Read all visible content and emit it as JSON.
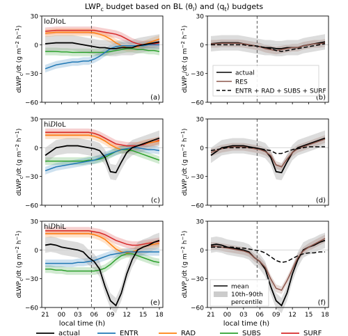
{
  "figure": {
    "title": "LWP c budget based on BL ⟨θl⟩ and ⟨qt⟩ budgets",
    "title_main": "LWP",
    "title_sub": "c",
    "title_rest": " budget based on BL ⟨θ",
    "title_sub2": "l",
    "title_rest2": "⟩ and ⟨q",
    "title_sub3": "t",
    "title_rest3": "⟩ budgets",
    "xlabel": "local time (h)",
    "ylabel": "dLWPc/dt (g m⁻² h⁻¹)",
    "ylabel_main": "dLWP",
    "ylabel_sub": "c",
    "ylabel_rest": "/dt (g m",
    "ylabel_sup1": "−2",
    "ylabel_mid": " h",
    "ylabel_sup2": "−1",
    "ylabel_end": ")"
  },
  "legend_bottom": {
    "items": [
      {
        "label": "actual",
        "color": "#000000"
      },
      {
        "label": "ENTR",
        "color": "#1f77b4"
      },
      {
        "label": "RAD",
        "color": "#ff7f0e"
      },
      {
        "label": "SUBS",
        "color": "#2ca02c"
      },
      {
        "label": "SURF",
        "color": "#d62728"
      }
    ]
  },
  "legend_b": {
    "items": [
      {
        "label": "actual",
        "style": "solid",
        "color": "#000000"
      },
      {
        "label": "RES",
        "style": "solid",
        "color": "#8c564b"
      },
      {
        "label": "ENTR + RAD + SUBS + SURF",
        "style": "dashed",
        "color": "#000000"
      }
    ]
  },
  "legend_f": {
    "mean_label": "mean",
    "band_label_line1": "10th–90th",
    "band_label_line2": "percentile"
  },
  "colors": {
    "actual": "#000000",
    "ENTR": "#1f77b4",
    "RAD": "#ff7f0e",
    "SUBS": "#2ca02c",
    "SURF": "#d62728",
    "RES": "#8c564b",
    "band_actual": "#9a9a9a"
  },
  "chart_data": [
    {
      "panel": "a",
      "row_label": "loDloL",
      "type": "line",
      "x": [
        "21",
        "22",
        "23",
        "00",
        "01",
        "02",
        "03",
        "04",
        "05",
        "06",
        "07",
        "08",
        "09",
        "10",
        "11",
        "12",
        "13",
        "14",
        "15",
        "16",
        "17",
        "18"
      ],
      "xticks": [
        "21",
        "00",
        "03",
        "06",
        "09",
        "12",
        "15",
        "18"
      ],
      "yticks": [
        "-60",
        "-30",
        "0",
        "30"
      ],
      "ylim": [
        -60,
        30
      ],
      "vline_at": "05.5",
      "series": [
        {
          "name": "SURF",
          "values": [
            14,
            14.5,
            15,
            15,
            15,
            15,
            15,
            15,
            15,
            15,
            14,
            13,
            12,
            11,
            9,
            6,
            3,
            1,
            0,
            0.5,
            1,
            2
          ]
        },
        {
          "name": "RAD",
          "values": [
            12,
            12.5,
            13,
            13,
            13,
            13,
            13,
            13,
            13,
            12.5,
            11,
            9,
            6,
            2,
            -1,
            -3,
            -3,
            -2,
            0,
            2,
            4,
            6
          ]
        },
        {
          "name": "SUBS",
          "values": [
            -7,
            -7,
            -7,
            -7.5,
            -7.5,
            -8,
            -8,
            -8,
            -8,
            -8,
            -8,
            -8,
            -7,
            -6,
            -5,
            -4,
            -4,
            -5,
            -5,
            -6,
            -6,
            -7
          ]
        },
        {
          "name": "ENTR",
          "values": [
            -25,
            -23,
            -21,
            -20,
            -19,
            -18,
            -18,
            -17,
            -17,
            -15,
            -12,
            -8,
            -4,
            -2,
            -1,
            -1,
            -1,
            -1,
            -1,
            0,
            0,
            0
          ]
        },
        {
          "name": "actual",
          "values": [
            1,
            1.5,
            2,
            2,
            2,
            2,
            1,
            0,
            -1,
            -2,
            -3,
            -3,
            -4,
            -4,
            -3,
            -3,
            -3,
            -1,
            0,
            1,
            2,
            3
          ]
        }
      ]
    },
    {
      "panel": "b",
      "type": "line",
      "x": [
        "21",
        "22",
        "23",
        "00",
        "01",
        "02",
        "03",
        "04",
        "05",
        "06",
        "07",
        "08",
        "09",
        "10",
        "11",
        "12",
        "13",
        "14",
        "15",
        "16",
        "17",
        "18"
      ],
      "xticks": [
        "21",
        "00",
        "03",
        "06",
        "09",
        "12",
        "15",
        "18"
      ],
      "yticks": [
        "-60",
        "-30",
        "0",
        "30"
      ],
      "ylim": [
        -60,
        30
      ],
      "vline_at": "05.5",
      "series": [
        {
          "name": "actual",
          "values": [
            1,
            1.5,
            2,
            2,
            2,
            2,
            1,
            0,
            -1,
            -2,
            -3,
            -3,
            -4,
            -4,
            -3,
            -3,
            -3,
            -1,
            0,
            1,
            2,
            3
          ]
        },
        {
          "name": "RES",
          "values": [
            1,
            1,
            1.5,
            1.5,
            1.5,
            1.5,
            1,
            0,
            -1,
            -2,
            -4,
            -5,
            -6,
            -5,
            -4,
            -3,
            -3,
            -1,
            0,
            1,
            1,
            2
          ]
        },
        {
          "name": "ENTR + RAD + SUBS + SURF",
          "values": [
            0,
            0,
            0,
            0,
            0,
            0,
            0,
            -1,
            -1,
            -2,
            -3,
            -4,
            -6,
            -7,
            -6,
            -5,
            -4,
            -3,
            -2,
            -1,
            0,
            1
          ]
        }
      ]
    },
    {
      "panel": "c",
      "row_label": "hiDloL",
      "type": "line",
      "x": [
        "21",
        "22",
        "23",
        "00",
        "01",
        "02",
        "03",
        "04",
        "05",
        "06",
        "07",
        "08",
        "09",
        "10",
        "11",
        "12",
        "13",
        "14",
        "15",
        "16",
        "17",
        "18"
      ],
      "xticks": [
        "21",
        "00",
        "03",
        "06",
        "09",
        "12",
        "15",
        "18"
      ],
      "yticks": [
        "-60",
        "-30",
        "0",
        "30"
      ],
      "ylim": [
        -60,
        30
      ],
      "vline_at": "05.5",
      "series": [
        {
          "name": "SURF",
          "values": [
            16,
            16,
            16,
            16,
            16,
            16,
            16,
            16,
            16,
            15,
            13,
            10,
            7,
            4,
            3,
            2,
            2,
            2,
            3,
            5,
            6,
            8
          ]
        },
        {
          "name": "RAD",
          "values": [
            13,
            13,
            13,
            13,
            13,
            13,
            13,
            13,
            13,
            12,
            10,
            7,
            3,
            0,
            -2,
            -2,
            0,
            2,
            4,
            5,
            6,
            7
          ]
        },
        {
          "name": "SUBS",
          "values": [
            -14,
            -14,
            -14,
            -14,
            -14,
            -14,
            -14,
            -14,
            -13,
            -13,
            -12,
            -10,
            -7,
            -4,
            -2,
            -2,
            -3,
            -5,
            -7,
            -9,
            -11,
            -13
          ]
        },
        {
          "name": "ENTR",
          "values": [
            -24,
            -22,
            -20,
            -19,
            -18,
            -17,
            -16,
            -15,
            -14,
            -13,
            -11,
            -8,
            -6,
            -4,
            -2,
            -1,
            0,
            0,
            -1,
            -2,
            -2,
            -3
          ]
        },
        {
          "name": "actual",
          "values": [
            -8,
            -4,
            0,
            1,
            2,
            2,
            2,
            1,
            0,
            -1,
            -3,
            -10,
            -25,
            -26,
            -15,
            -5,
            0,
            2,
            4,
            6,
            8,
            10
          ]
        }
      ]
    },
    {
      "panel": "d",
      "type": "line",
      "x": [
        "21",
        "22",
        "23",
        "00",
        "01",
        "02",
        "03",
        "04",
        "05",
        "06",
        "07",
        "08",
        "09",
        "10",
        "11",
        "12",
        "13",
        "14",
        "15",
        "16",
        "17",
        "18"
      ],
      "xticks": [
        "21",
        "00",
        "03",
        "06",
        "09",
        "12",
        "15",
        "18"
      ],
      "yticks": [
        "-60",
        "-30",
        "0",
        "30"
      ],
      "ylim": [
        -60,
        30
      ],
      "vline_at": "05.5",
      "series": [
        {
          "name": "actual",
          "values": [
            -8,
            -4,
            0,
            1,
            2,
            2,
            2,
            1,
            0,
            -1,
            -3,
            -10,
            -25,
            -26,
            -15,
            -5,
            0,
            2,
            4,
            6,
            8,
            10
          ]
        },
        {
          "name": "RES",
          "values": [
            -5,
            -3,
            -1,
            0,
            1,
            1,
            1,
            0,
            -1,
            -2,
            -4,
            -8,
            -18,
            -20,
            -12,
            -5,
            -1,
            1,
            3,
            5,
            7,
            9
          ]
        },
        {
          "name": "ENTR + RAD + SUBS + SURF",
          "values": [
            -3,
            -2,
            -1,
            0,
            0,
            0,
            0,
            0,
            0,
            -1,
            -2,
            -3,
            -6,
            -6,
            -4,
            -2,
            -1,
            0,
            1,
            1,
            1,
            1
          ]
        }
      ]
    },
    {
      "panel": "e",
      "row_label": "hiDhiL",
      "type": "line",
      "x": [
        "21",
        "22",
        "23",
        "00",
        "01",
        "02",
        "03",
        "04",
        "05",
        "06",
        "07",
        "08",
        "09",
        "10",
        "11",
        "12",
        "13",
        "14",
        "15",
        "16",
        "17",
        "18"
      ],
      "xticks": [
        "21",
        "00",
        "03",
        "06",
        "09",
        "12",
        "15",
        "18"
      ],
      "yticks": [
        "-60",
        "-30",
        "0",
        "30"
      ],
      "ylim": [
        -60,
        30
      ],
      "vline_at": "05.5",
      "series": [
        {
          "name": "SURF",
          "values": [
            20,
            20,
            20,
            20,
            20,
            20,
            20,
            20,
            20,
            19,
            18,
            16,
            13,
            10,
            8,
            6,
            5,
            5,
            6,
            7,
            8,
            9
          ]
        },
        {
          "name": "RAD",
          "values": [
            17,
            17,
            17,
            17,
            17,
            17,
            17,
            17,
            17,
            16,
            14,
            11,
            6,
            1,
            -2,
            -3,
            -2,
            0,
            3,
            5,
            6,
            7
          ]
        },
        {
          "name": "SUBS",
          "values": [
            -20,
            -20,
            -21,
            -21,
            -22,
            -22,
            -22,
            -22,
            -22,
            -22,
            -21,
            -19,
            -15,
            -10,
            -6,
            -4,
            -4,
            -6,
            -8,
            -10,
            -12,
            -13
          ]
        },
        {
          "name": "ENTR",
          "values": [
            -14,
            -14,
            -14,
            -14,
            -14,
            -14,
            -13,
            -13,
            -12,
            -11,
            -9,
            -7,
            -5,
            -4,
            -3,
            -2,
            -2,
            -2,
            -2,
            -2,
            -2,
            -2
          ]
        },
        {
          "name": "actual",
          "values": [
            5,
            6,
            5,
            3,
            2,
            1,
            0,
            -2,
            -8,
            -12,
            -20,
            -38,
            -53,
            -58,
            -45,
            -25,
            -10,
            0,
            3,
            5,
            8,
            10
          ]
        }
      ]
    },
    {
      "panel": "f",
      "type": "line",
      "x": [
        "21",
        "22",
        "23",
        "00",
        "01",
        "02",
        "03",
        "04",
        "05",
        "06",
        "07",
        "08",
        "09",
        "10",
        "11",
        "12",
        "13",
        "14",
        "15",
        "16",
        "17",
        "18"
      ],
      "xticks": [
        "21",
        "00",
        "03",
        "06",
        "09",
        "12",
        "15",
        "18"
      ],
      "yticks": [
        "-60",
        "-30",
        "0",
        "30"
      ],
      "ylim": [
        -60,
        30
      ],
      "vline_at": "05.5",
      "series": [
        {
          "name": "actual",
          "values": [
            5,
            6,
            5,
            3,
            2,
            1,
            0,
            -2,
            -8,
            -12,
            -20,
            -38,
            -53,
            -58,
            -45,
            -25,
            -10,
            0,
            3,
            5,
            8,
            10
          ]
        },
        {
          "name": "RES",
          "values": [
            4,
            4,
            3,
            2,
            1,
            0,
            -1,
            -3,
            -8,
            -12,
            -18,
            -30,
            -40,
            -42,
            -32,
            -20,
            -8,
            -1,
            3,
            6,
            9,
            12
          ]
        },
        {
          "name": "ENTR + RAD + SUBS + SURF",
          "values": [
            3,
            3,
            3,
            3,
            3,
            2,
            2,
            1,
            0,
            -1,
            -3,
            -7,
            -11,
            -13,
            -12,
            -9,
            -6,
            -4,
            -3,
            -3,
            -2,
            -2
          ]
        }
      ]
    }
  ]
}
